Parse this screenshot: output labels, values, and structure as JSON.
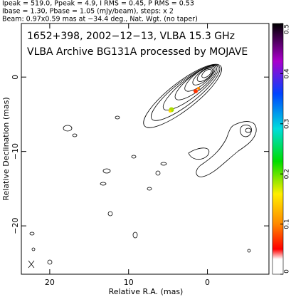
{
  "chart_data": {
    "type": "contour",
    "header": [
      "Ipeak = 519.0, Ppeak = 4.9, I RMS = 0.45, P RMS = 0.53",
      "Ibase = 1.30, Pbase = 1.05 (mJy/beam), steps: x 2",
      "Beam: 0.97x0.59 mas at −34.4 deg., Nat. Wgt. (no taper)"
    ],
    "title": "1652+398, 2002−12−13, VLBA 15.3 GHz",
    "subtitle": "VLBA Archive BG131A processed by MOJAVE",
    "xlabel": "Relative R.A. (mas)",
    "ylabel": "Relative Declination (mas)",
    "xlim": [
      23.6,
      -7.8
    ],
    "xticks": [
      20,
      10,
      0
    ],
    "ylim": [
      -26.5,
      7.2
    ],
    "yticks": [
      0,
      {
        "value": -10,
        "label": "−10"
      },
      {
        "value": -20,
        "label": "−20"
      }
    ],
    "colorbar": {
      "lim": [
        0,
        0.5
      ],
      "ticks": [
        0,
        0.1,
        0.2,
        0.3,
        0.4,
        0.5
      ]
    }
  }
}
